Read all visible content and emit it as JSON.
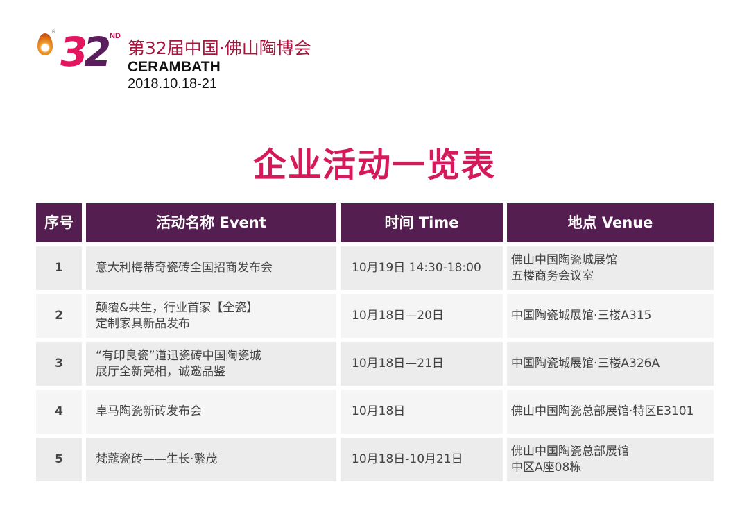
{
  "logo": {
    "number": "32",
    "suffix": "ND",
    "registered": "®",
    "chinese_name": "第32届中国·佛山陶博会",
    "english_name": "CERAMBATH",
    "dates": "2018.10.18-21"
  },
  "title": "企业活动一览表",
  "table": {
    "headers": [
      "序号",
      "活动名称 Event",
      "时间 Time",
      "地点 Venue"
    ],
    "rows": [
      {
        "no": "1",
        "event": [
          "意大利梅蒂奇瓷砖全国招商发布会"
        ],
        "time": "10月19日 14:30-18:00",
        "venue": [
          "佛山中国陶瓷城展馆",
          "五楼商务会议室"
        ]
      },
      {
        "no": "2",
        "event": [
          "颠覆&共生，行业首家【全瓷】",
          "定制家具新品发布"
        ],
        "time": "10月18日—20日",
        "venue": [
          "中国陶瓷城展馆·三楼A315"
        ]
      },
      {
        "no": "3",
        "event": [
          "“有印良瓷”道迅瓷砖中国陶瓷城",
          "展厅全新亮相，诚邀品鉴"
        ],
        "time": "10月18日—21日",
        "venue": [
          "中国陶瓷城展馆·三楼A326A"
        ]
      },
      {
        "no": "4",
        "event": [
          "卓马陶瓷新砖发布会"
        ],
        "time": "10月18日",
        "venue": [
          "佛山中国陶瓷总部展馆·特区E3101"
        ]
      },
      {
        "no": "5",
        "event": [
          "梵蔻瓷砖——生长·繁茂"
        ],
        "time": "10月18日-10月21日",
        "venue": [
          "佛山中国陶瓷总部展馆",
          "中区A座08栋"
        ]
      }
    ]
  },
  "colors": {
    "header_bg": "#541f50",
    "title": "#d51a5b",
    "row_bg": "#ececec",
    "row_alt_bg": "#f5f5f5"
  }
}
